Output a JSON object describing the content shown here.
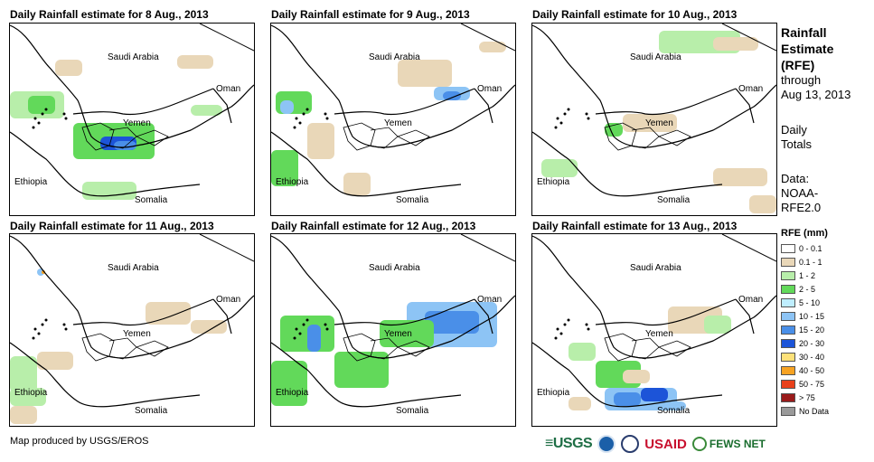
{
  "panels": [
    {
      "title": "Daily Rainfall estimate for 8 Aug., 2013"
    },
    {
      "title": "Daily Rainfall estimate for 9 Aug., 2013"
    },
    {
      "title": "Daily Rainfall estimate for 10 Aug., 2013"
    },
    {
      "title": "Daily Rainfall estimate for 11 Aug., 2013"
    },
    {
      "title": "Daily Rainfall estimate for 12 Aug., 2013"
    },
    {
      "title": "Daily Rainfall estimate for 13 Aug., 2013"
    }
  ],
  "map_labels": {
    "saudi": "Saudi Arabia",
    "oman": "Oman",
    "yemen": "Yemen",
    "ethiopia": "Ethiopia",
    "somalia": "Somalia"
  },
  "legend": {
    "title_lines": [
      "Rainfall",
      "Estimate",
      "(RFE)"
    ],
    "through": "through",
    "date": "Aug 13, 2013",
    "daily": "Daily",
    "totals": "Totals",
    "data_label": "Data:",
    "data_source_1": "NOAA-",
    "data_source_2": "RFE2.0",
    "unit_label": "RFE (mm)",
    "classes": [
      {
        "label": "0 - 0.1",
        "color": "#ffffff"
      },
      {
        "label": "0.1 - 1",
        "color": "#e9d7b8"
      },
      {
        "label": "1 - 2",
        "color": "#b8eeaa"
      },
      {
        "label": "2 - 5",
        "color": "#62d95a"
      },
      {
        "label": "5 - 10",
        "color": "#bfeeff"
      },
      {
        "label": "10 - 15",
        "color": "#8dc4f5"
      },
      {
        "label": "15 - 20",
        "color": "#4a8fe8"
      },
      {
        "label": "20 - 30",
        "color": "#1c54d8"
      },
      {
        "label": "30 - 40",
        "color": "#fde17a"
      },
      {
        "label": "40 - 50",
        "color": "#f7a323"
      },
      {
        "label": "50 - 75",
        "color": "#e8401b"
      },
      {
        "label": "> 75",
        "color": "#9a1b1b"
      },
      {
        "label": "No Data",
        "color": "#9a9a9a"
      }
    ]
  },
  "footer": {
    "credit": "Map produced by USGS/EROS"
  },
  "logos": {
    "usgs": "≡USGS",
    "usaid": "USAID",
    "fews": "FEWS NET"
  }
}
